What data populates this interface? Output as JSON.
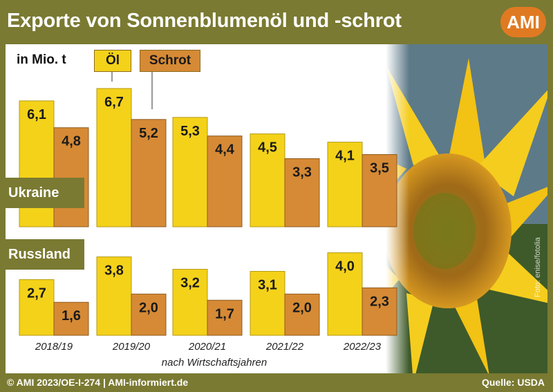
{
  "header": {
    "title": "Exporte von Sonnenblumenöl und -schrot",
    "logo_text": "AMI"
  },
  "footer": {
    "left": "© AMI 2023/OE-I-274 | AMI-informiert.de",
    "right": "Quelle: USDA"
  },
  "photo_credit": "Foto: enise/fotolia",
  "colors": {
    "oil": "#f4d21a",
    "meal": "#d68a35",
    "frame": "#7a7a32",
    "logo": "#e07a22"
  },
  "chart_data": {
    "type": "bar",
    "unit_label": "in Mio. t",
    "xlabel": "nach Wirtschaftsjahren",
    "categories": [
      "2018/19",
      "2019/20",
      "2020/21",
      "2021/22",
      "2022/23"
    ],
    "legend": [
      "Öl",
      "Schrot"
    ],
    "panels": [
      {
        "region": "Ukraine",
        "series": [
          {
            "name": "Öl",
            "values": [
              6.1,
              6.7,
              5.3,
              4.5,
              4.1
            ]
          },
          {
            "name": "Schrot",
            "values": [
              4.8,
              5.2,
              4.4,
              3.3,
              3.5
            ]
          }
        ]
      },
      {
        "region": "Russland",
        "series": [
          {
            "name": "Öl",
            "values": [
              2.7,
              3.8,
              3.2,
              3.1,
              4.0
            ]
          },
          {
            "name": "Schrot",
            "values": [
              1.6,
              2.0,
              1.7,
              2.0,
              2.3
            ]
          }
        ]
      }
    ]
  }
}
